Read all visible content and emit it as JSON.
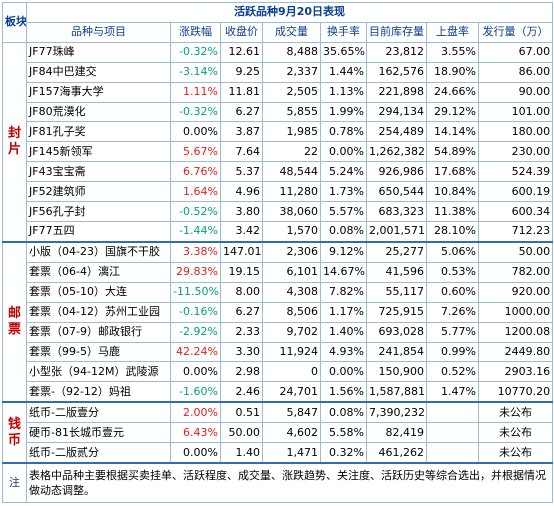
{
  "title": "活跃品种9月20日表现",
  "corner_label": "板块",
  "headers": [
    "品种与项目",
    "涨跌幅",
    "收盘价",
    "成交量",
    "换手率",
    "目前库存量",
    "上盘率",
    "发行量（万）"
  ],
  "sections": [
    {
      "label_chars": [
        "封",
        "片"
      ],
      "rows": [
        {
          "name": "JF77珠峰",
          "change": "-0.32%",
          "dir": "down",
          "close": "12.61",
          "volume": "8,488",
          "turnover": "35.65%",
          "stock": "23,812",
          "rate": "3.55%",
          "issue": "67.00"
        },
        {
          "name": "JF84中巴建交",
          "change": "-3.14%",
          "dir": "down",
          "close": "9.25",
          "volume": "2,337",
          "turnover": "1.44%",
          "stock": "162,576",
          "rate": "18.90%",
          "issue": "86.00"
        },
        {
          "name": "JF157海事大学",
          "change": "1.11%",
          "dir": "up",
          "close": "11.81",
          "volume": "2,505",
          "turnover": "1.13%",
          "stock": "221,898",
          "rate": "24.66%",
          "issue": "90.00"
        },
        {
          "name": "JF80荒漠化",
          "change": "-0.32%",
          "dir": "down",
          "close": "6.27",
          "volume": "5,855",
          "turnover": "1.99%",
          "stock": "294,134",
          "rate": "29.12%",
          "issue": "101.00"
        },
        {
          "name": "JF81孔子奖",
          "change": "0.00%",
          "dir": "flat",
          "close": "3.87",
          "volume": "1,985",
          "turnover": "0.78%",
          "stock": "254,489",
          "rate": "14.14%",
          "issue": "180.00"
        },
        {
          "name": "JF145新领军",
          "change": "5.67%",
          "dir": "up",
          "close": "7.64",
          "volume": "22",
          "turnover": "0.00%",
          "stock": "1,262,382",
          "rate": "54.89%",
          "issue": "230.00"
        },
        {
          "name": "JF43宝宝斋",
          "change": "6.76%",
          "dir": "up",
          "close": "5.37",
          "volume": "48,544",
          "turnover": "5.24%",
          "stock": "926,986",
          "rate": "17.68%",
          "issue": "524.39"
        },
        {
          "name": "JF52建筑师",
          "change": "1.64%",
          "dir": "up",
          "close": "4.96",
          "volume": "11,280",
          "turnover": "1.73%",
          "stock": "650,544",
          "rate": "10.84%",
          "issue": "600.19"
        },
        {
          "name": "JF56孔子封",
          "change": "-0.52%",
          "dir": "down",
          "close": "3.80",
          "volume": "38,060",
          "turnover": "5.57%",
          "stock": "683,323",
          "rate": "11.38%",
          "issue": "600.34"
        },
        {
          "name": "JF77五四",
          "change": "-1.44%",
          "dir": "down",
          "close": "3.42",
          "volume": "1,570",
          "turnover": "0.08%",
          "stock": "2,001,571",
          "rate": "28.10%",
          "issue": "712.23"
        }
      ]
    },
    {
      "label_chars": [
        "邮",
        "票"
      ],
      "rows": [
        {
          "name": "小版（04-23）国旗不干胶",
          "change": "3.38%",
          "dir": "up",
          "close": "147.01",
          "volume": "2,306",
          "turnover": "9.12%",
          "stock": "25,277",
          "rate": "5.06%",
          "issue": "50.00"
        },
        {
          "name": "套票（06-4）漓江",
          "change": "29.83%",
          "dir": "up",
          "close": "19.15",
          "volume": "6,101",
          "turnover": "14.67%",
          "stock": "41,596",
          "rate": "0.53%",
          "issue": "782.00"
        },
        {
          "name": "套票（05-10）大连",
          "change": "-11.50%",
          "dir": "down",
          "close": "8.00",
          "volume": "4,308",
          "turnover": "7.82%",
          "stock": "55,117",
          "rate": "0.60%",
          "issue": "920.00"
        },
        {
          "name": "套票（04-12）苏州工业园",
          "change": "-0.16%",
          "dir": "down",
          "close": "6.27",
          "volume": "8,506",
          "turnover": "1.17%",
          "stock": "725,915",
          "rate": "7.26%",
          "issue": "1000.00"
        },
        {
          "name": "套票（07-9）邮政银行",
          "change": "-2.92%",
          "dir": "down",
          "close": "2.33",
          "volume": "9,702",
          "turnover": "1.40%",
          "stock": "693,028",
          "rate": "5.77%",
          "issue": "1200.08"
        },
        {
          "name": "套票（99-5）马鹿",
          "change": "42.24%",
          "dir": "up",
          "close": "3.30",
          "volume": "11,924",
          "turnover": "4.93%",
          "stock": "241,854",
          "rate": "0.99%",
          "issue": "2449.80"
        },
        {
          "name": "小型张（94-12M）武陵源",
          "change": "0.00%",
          "dir": "flat",
          "close": "2.98",
          "volume": "0",
          "turnover": "0.00%",
          "stock": "150,900",
          "rate": "0.52%",
          "issue": "2903.16"
        },
        {
          "name": "套票-（92-12）妈祖",
          "change": "-1.60%",
          "dir": "down",
          "close": "2.46",
          "volume": "24,701",
          "turnover": "1.56%",
          "stock": "1,587,881",
          "rate": "1.47%",
          "issue": "10770.20"
        }
      ]
    },
    {
      "label_chars": [
        "钱",
        "币"
      ],
      "rows": [
        {
          "name": "纸币-二版壹分",
          "change": "2.00%",
          "dir": "up",
          "close": "0.51",
          "volume": "5,847",
          "turnover": "0.08%",
          "stock": "7,390,232",
          "rate": "",
          "issue": "未公布"
        },
        {
          "name": "硬币-81长城币壹元",
          "change": "6.43%",
          "dir": "up",
          "close": "50.00",
          "volume": "4,602",
          "turnover": "5.58%",
          "stock": "82,419",
          "rate": "",
          "issue": "未公布"
        },
        {
          "name": "纸币-二版贰分",
          "change": "0.00%",
          "dir": "flat",
          "close": "1.40",
          "volume": "1,471",
          "turnover": "0.32%",
          "stock": "461,262",
          "rate": "",
          "issue": "未公布"
        }
      ]
    }
  ],
  "note_label": "注",
  "note_text": "表格中品种主要根据买卖挂单、活跃程度、成交量、涨跌趋势、关注度、活跃历史等综合选出，并根据情况做动态调整。",
  "colors": {
    "up": "#e02020",
    "down": "#00a08a",
    "header": "#0b3d91",
    "section": "#c00000",
    "border": "#9bbcd9"
  }
}
